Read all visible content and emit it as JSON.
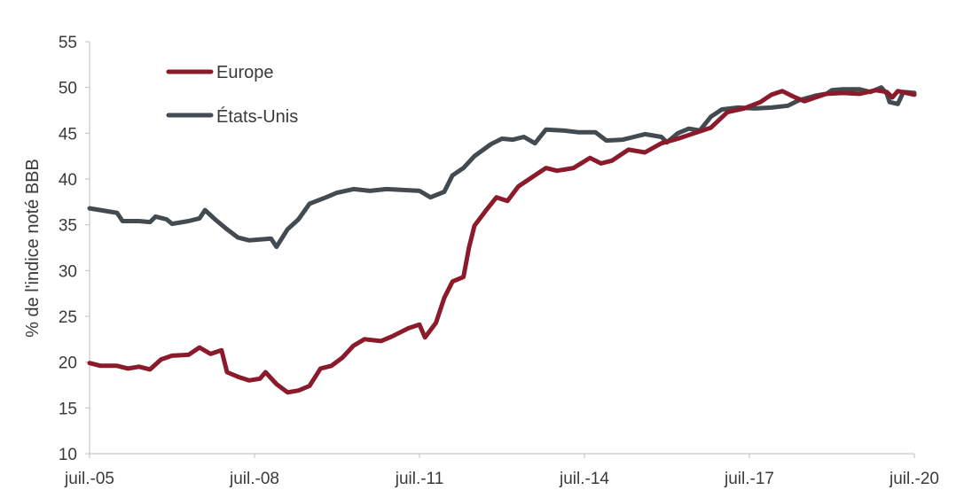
{
  "chart_data": {
    "type": "line",
    "title": "",
    "xlabel": "",
    "ylabel": "% de l'indice noté BBB",
    "ylim": [
      10,
      55
    ],
    "yticks": [
      10,
      15,
      20,
      25,
      30,
      35,
      40,
      45,
      50,
      55
    ],
    "xlim": [
      2005.5,
      2020.5
    ],
    "xticks": [
      {
        "x": 2005.5,
        "label": "juil.-05"
      },
      {
        "x": 2008.5,
        "label": "juil.-08"
      },
      {
        "x": 2011.5,
        "label": "juil.-11"
      },
      {
        "x": 2014.5,
        "label": "juil.-14"
      },
      {
        "x": 2017.5,
        "label": "juil.-17"
      },
      {
        "x": 2020.5,
        "label": "juil.-20"
      }
    ],
    "grid": false,
    "legend": {
      "position": "top-left"
    },
    "series": [
      {
        "name": "Europe",
        "color": "#8b1a2b",
        "points": [
          [
            2005.5,
            19.9
          ],
          [
            2005.7,
            19.6
          ],
          [
            2006.0,
            19.6
          ],
          [
            2006.2,
            19.3
          ],
          [
            2006.4,
            19.5
          ],
          [
            2006.6,
            19.2
          ],
          [
            2006.8,
            20.3
          ],
          [
            2007.0,
            20.7
          ],
          [
            2007.3,
            20.8
          ],
          [
            2007.5,
            21.6
          ],
          [
            2007.7,
            20.9
          ],
          [
            2007.9,
            21.3
          ],
          [
            2008.0,
            18.9
          ],
          [
            2008.2,
            18.4
          ],
          [
            2008.4,
            18.0
          ],
          [
            2008.6,
            18.2
          ],
          [
            2008.7,
            18.9
          ],
          [
            2008.9,
            17.6
          ],
          [
            2009.1,
            16.7
          ],
          [
            2009.3,
            16.9
          ],
          [
            2009.5,
            17.4
          ],
          [
            2009.7,
            19.3
          ],
          [
            2009.9,
            19.6
          ],
          [
            2010.1,
            20.5
          ],
          [
            2010.3,
            21.8
          ],
          [
            2010.5,
            22.5
          ],
          [
            2010.8,
            22.3
          ],
          [
            2011.0,
            22.8
          ],
          [
            2011.3,
            23.7
          ],
          [
            2011.5,
            24.1
          ],
          [
            2011.6,
            22.7
          ],
          [
            2011.8,
            24.3
          ],
          [
            2011.95,
            27.0
          ],
          [
            2012.1,
            28.8
          ],
          [
            2012.3,
            29.3
          ],
          [
            2012.4,
            32.5
          ],
          [
            2012.5,
            34.9
          ],
          [
            2012.7,
            36.5
          ],
          [
            2012.9,
            38.0
          ],
          [
            2013.1,
            37.6
          ],
          [
            2013.3,
            39.2
          ],
          [
            2013.5,
            40.0
          ],
          [
            2013.8,
            41.2
          ],
          [
            2014.0,
            40.9
          ],
          [
            2014.3,
            41.2
          ],
          [
            2014.6,
            42.3
          ],
          [
            2014.8,
            41.7
          ],
          [
            2015.0,
            42.0
          ],
          [
            2015.3,
            43.2
          ],
          [
            2015.6,
            42.9
          ],
          [
            2015.9,
            43.9
          ],
          [
            2016.2,
            44.4
          ],
          [
            2016.5,
            45.0
          ],
          [
            2016.8,
            45.6
          ],
          [
            2017.1,
            47.3
          ],
          [
            2017.4,
            47.7
          ],
          [
            2017.7,
            48.4
          ],
          [
            2017.9,
            49.2
          ],
          [
            2018.1,
            49.6
          ],
          [
            2018.3,
            49.0
          ],
          [
            2018.5,
            48.5
          ],
          [
            2018.7,
            48.9
          ],
          [
            2018.9,
            49.3
          ],
          [
            2019.2,
            49.4
          ],
          [
            2019.5,
            49.3
          ],
          [
            2019.8,
            49.7
          ],
          [
            2020.0,
            49.5
          ],
          [
            2020.1,
            48.9
          ],
          [
            2020.2,
            49.6
          ],
          [
            2020.5,
            49.2
          ]
        ]
      },
      {
        "name": "États-Unis",
        "color": "#434a50",
        "points": [
          [
            2005.5,
            36.8
          ],
          [
            2005.7,
            36.6
          ],
          [
            2006.0,
            36.3
          ],
          [
            2006.1,
            35.4
          ],
          [
            2006.4,
            35.4
          ],
          [
            2006.6,
            35.3
          ],
          [
            2006.7,
            35.9
          ],
          [
            2006.9,
            35.6
          ],
          [
            2007.0,
            35.1
          ],
          [
            2007.3,
            35.4
          ],
          [
            2007.5,
            35.7
          ],
          [
            2007.6,
            36.6
          ],
          [
            2007.8,
            35.5
          ],
          [
            2008.0,
            34.5
          ],
          [
            2008.2,
            33.6
          ],
          [
            2008.4,
            33.3
          ],
          [
            2008.6,
            33.4
          ],
          [
            2008.8,
            33.5
          ],
          [
            2008.9,
            32.6
          ],
          [
            2009.1,
            34.5
          ],
          [
            2009.3,
            35.6
          ],
          [
            2009.5,
            37.3
          ],
          [
            2009.8,
            38.0
          ],
          [
            2010.0,
            38.5
          ],
          [
            2010.3,
            38.9
          ],
          [
            2010.6,
            38.7
          ],
          [
            2010.9,
            38.9
          ],
          [
            2011.2,
            38.8
          ],
          [
            2011.5,
            38.7
          ],
          [
            2011.7,
            38.0
          ],
          [
            2011.95,
            38.6
          ],
          [
            2012.1,
            40.4
          ],
          [
            2012.3,
            41.2
          ],
          [
            2012.5,
            42.5
          ],
          [
            2012.8,
            43.8
          ],
          [
            2013.0,
            44.4
          ],
          [
            2013.2,
            44.3
          ],
          [
            2013.4,
            44.6
          ],
          [
            2013.6,
            43.9
          ],
          [
            2013.8,
            45.4
          ],
          [
            2014.1,
            45.3
          ],
          [
            2014.4,
            45.1
          ],
          [
            2014.7,
            45.1
          ],
          [
            2014.9,
            44.2
          ],
          [
            2015.2,
            44.3
          ],
          [
            2015.4,
            44.6
          ],
          [
            2015.6,
            44.9
          ],
          [
            2015.9,
            44.6
          ],
          [
            2016.0,
            44.0
          ],
          [
            2016.2,
            45.0
          ],
          [
            2016.4,
            45.5
          ],
          [
            2016.6,
            45.3
          ],
          [
            2016.8,
            46.8
          ],
          [
            2017.0,
            47.6
          ],
          [
            2017.3,
            47.8
          ],
          [
            2017.6,
            47.7
          ],
          [
            2017.9,
            47.8
          ],
          [
            2018.2,
            48.0
          ],
          [
            2018.4,
            48.6
          ],
          [
            2018.7,
            49.1
          ],
          [
            2018.9,
            49.3
          ],
          [
            2019.0,
            49.7
          ],
          [
            2019.2,
            49.8
          ],
          [
            2019.5,
            49.8
          ],
          [
            2019.7,
            49.5
          ],
          [
            2019.9,
            50.0
          ],
          [
            2020.0,
            49.3
          ],
          [
            2020.05,
            48.4
          ],
          [
            2020.2,
            48.2
          ],
          [
            2020.3,
            49.5
          ],
          [
            2020.5,
            49.4
          ]
        ]
      }
    ]
  }
}
